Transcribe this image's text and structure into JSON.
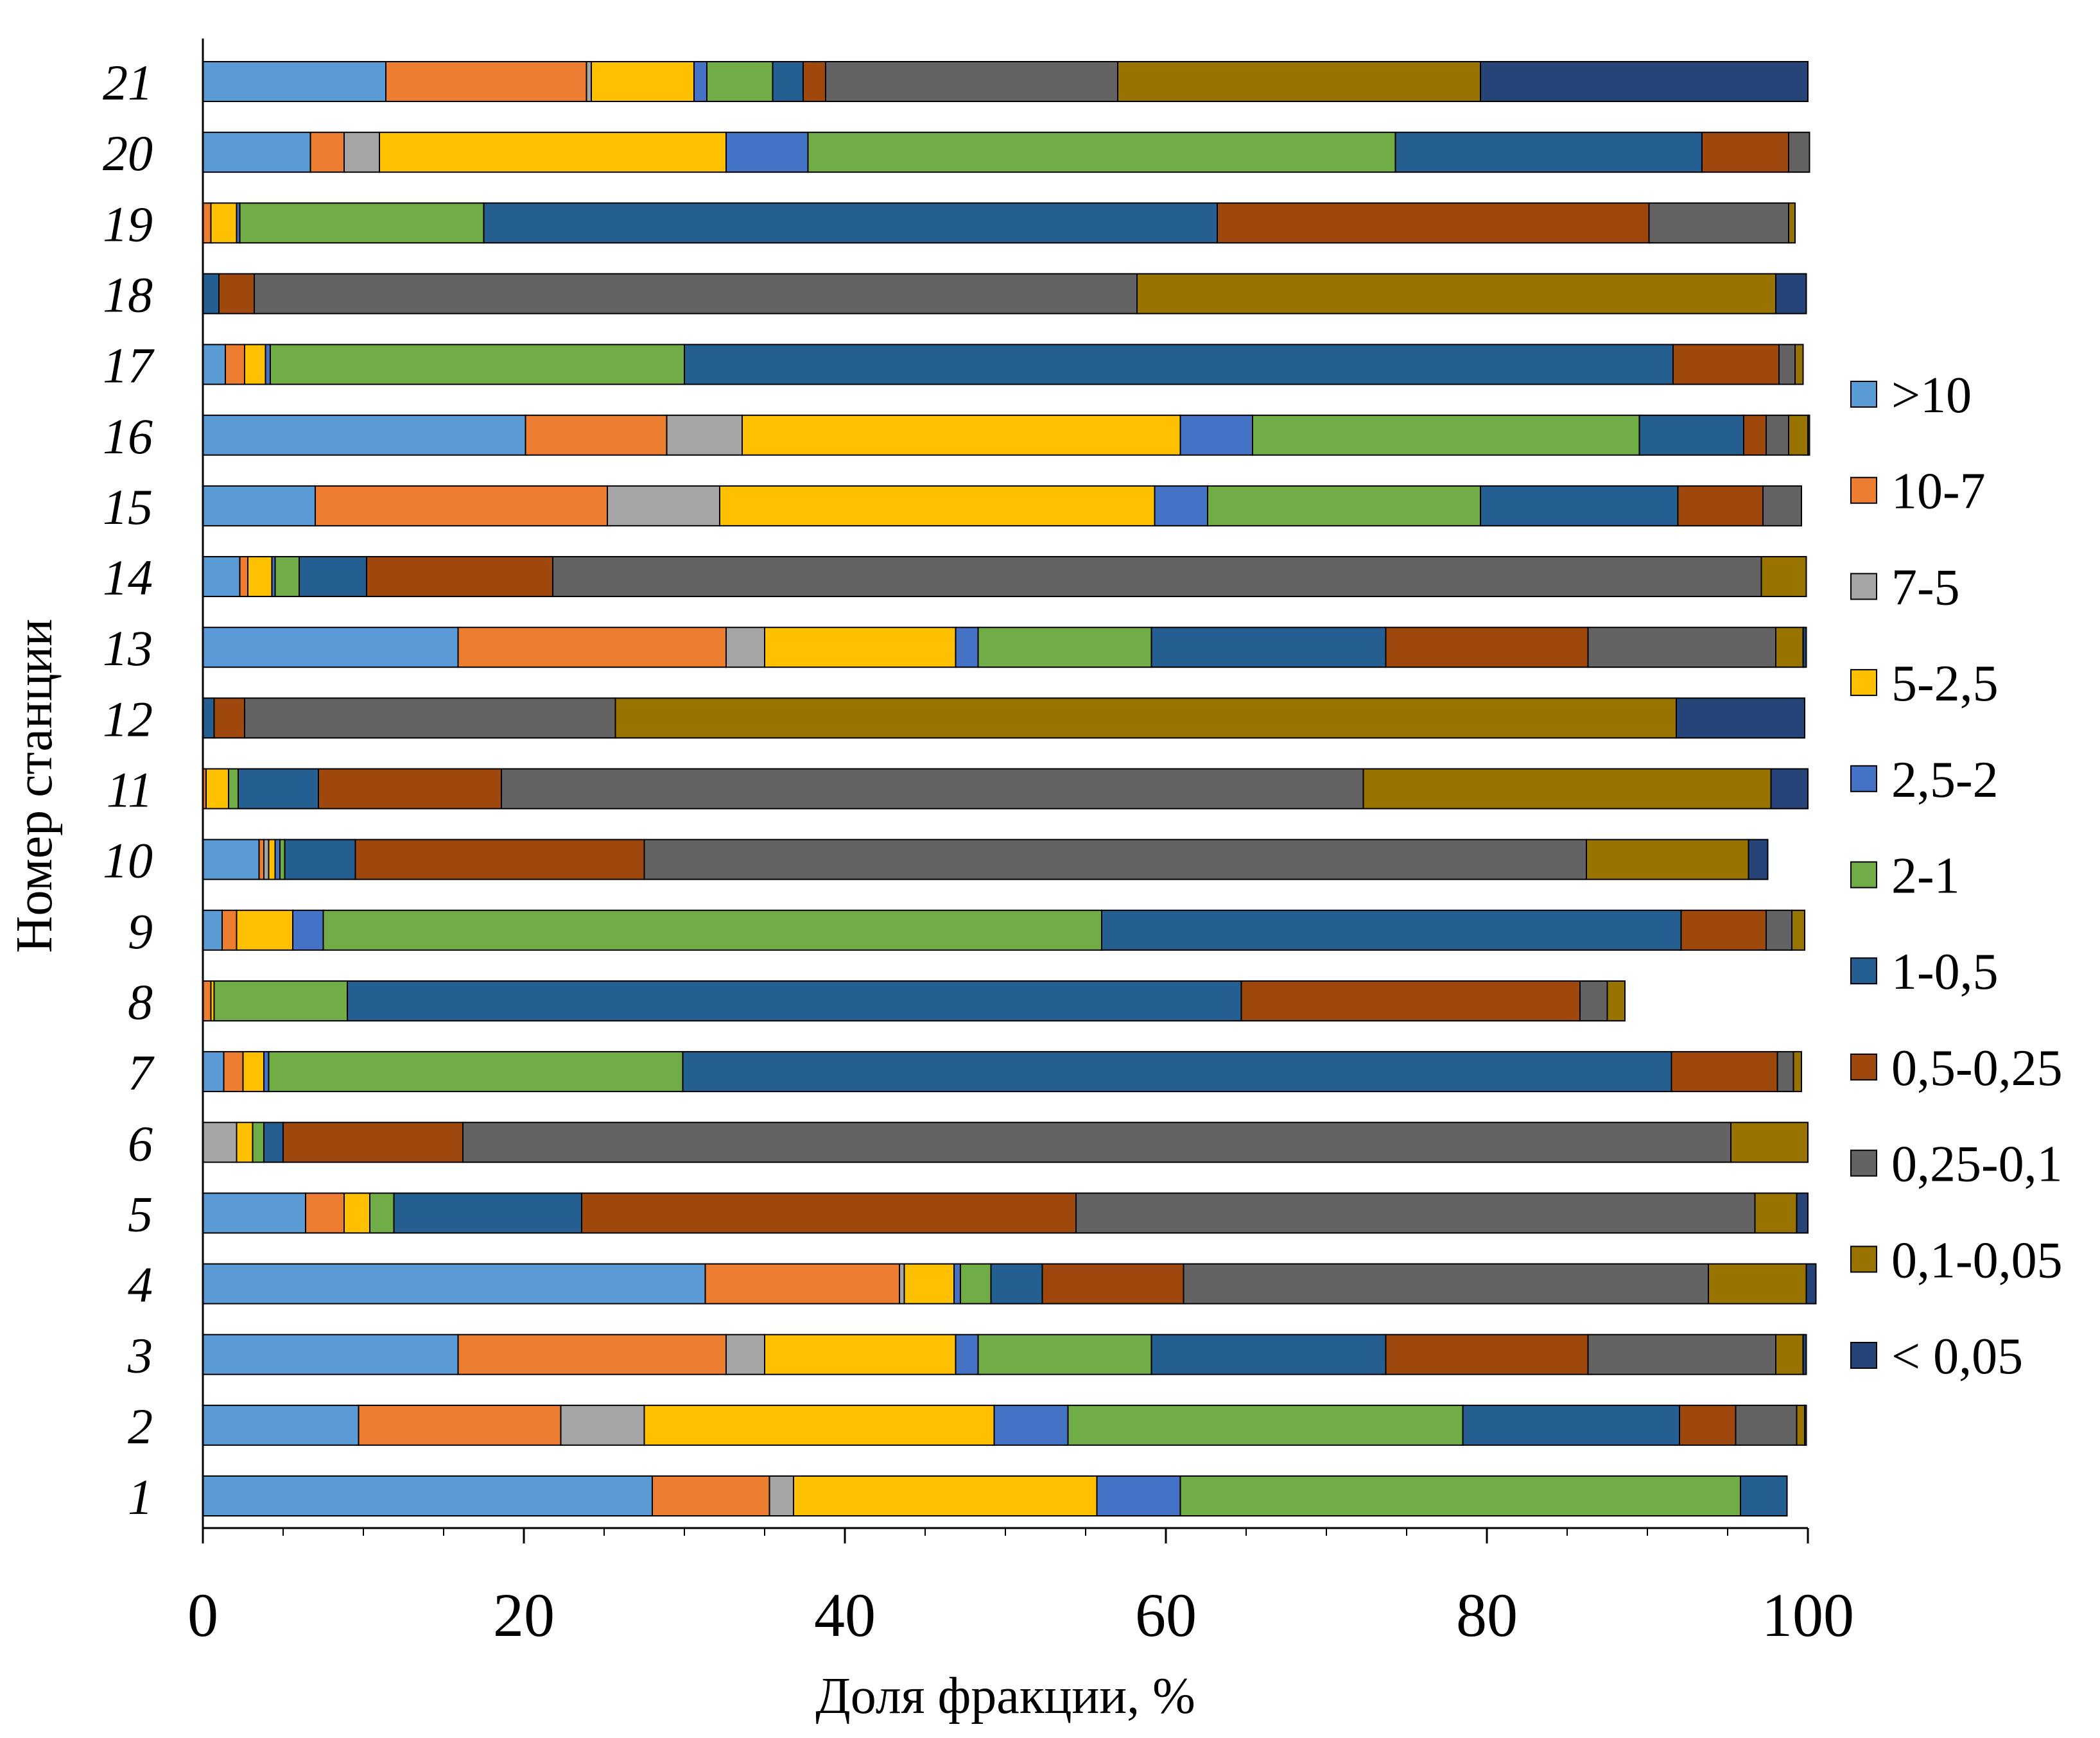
{
  "chart_data": {
    "type": "bar",
    "orientation": "horizontal",
    "stacked": "percent",
    "xlabel": "Доля фракции, %",
    "ylabel": "Номер станции",
    "xlim": [
      0,
      100
    ],
    "xticks": [
      "0",
      "20",
      "40",
      "60",
      "80",
      "100"
    ],
    "grid": false,
    "legend_position": "right",
    "categories": [
      "1",
      "2",
      "3",
      "4",
      "5",
      "6",
      "7",
      "8",
      "9",
      "10",
      "11",
      "12",
      "13",
      "14",
      "15",
      "16",
      "17",
      "18",
      "19",
      "20",
      "21"
    ],
    "series": [
      {
        "name": ">10",
        "color": "#5B9BD5",
        "values": [
          28.0,
          9.7,
          15.9,
          31.3,
          6.4,
          0,
          1.3,
          0,
          1.2,
          3.5,
          0,
          0,
          15.9,
          2.3,
          7.0,
          20.1,
          1.4,
          0,
          0,
          6.7,
          11.4
        ]
      },
      {
        "name": "10-7",
        "color": "#ED7D31",
        "values": [
          7.3,
          12.6,
          16.7,
          12.1,
          2.4,
          0,
          1.2,
          0.5,
          0.9,
          0.3,
          0.2,
          0,
          16.7,
          0.5,
          18.2,
          8.8,
          1.2,
          0,
          0.5,
          2.1,
          12.5
        ]
      },
      {
        "name": "7-5",
        "color": "#A5A5A5",
        "values": [
          1.5,
          5.2,
          2.4,
          0.3,
          0,
          2.1,
          0,
          0,
          0,
          0.3,
          0,
          0,
          2.4,
          0,
          7.0,
          4.7,
          0,
          0,
          0,
          2.2,
          0.3
        ]
      },
      {
        "name": "5-2,5",
        "color": "#FFC000",
        "values": [
          18.9,
          21.8,
          11.9,
          3.1,
          1.6,
          1.0,
          1.3,
          0.2,
          3.5,
          0.4,
          1.4,
          0,
          11.9,
          1.5,
          27.1,
          27.3,
          1.3,
          0,
          1.6,
          21.6,
          6.4
        ]
      },
      {
        "name": "2,5-2",
        "color": "#4472C4",
        "values": [
          5.2,
          4.6,
          1.4,
          0.4,
          0,
          0,
          0.3,
          0,
          1.9,
          0.3,
          0,
          0,
          1.4,
          0.2,
          3.3,
          4.5,
          0.3,
          0,
          0.2,
          5.1,
          0.8
        ]
      },
      {
        "name": "2-1",
        "color": "#70AD47",
        "values": [
          34.9,
          24.6,
          10.8,
          1.9,
          1.5,
          0.7,
          25.8,
          8.3,
          48.5,
          0.3,
          0.6,
          0,
          10.8,
          1.5,
          17.0,
          24.1,
          25.8,
          0,
          15.2,
          36.6,
          4.1
        ]
      },
      {
        "name": "1-0,5",
        "color": "#255E91",
        "values": [
          2.9,
          13.5,
          14.6,
          3.2,
          11.7,
          1.2,
          61.6,
          55.7,
          36.1,
          4.4,
          5.0,
          0.7,
          14.6,
          4.2,
          12.3,
          6.5,
          61.6,
          1.0,
          45.7,
          19.1,
          1.9
        ]
      },
      {
        "name": "0,5-0,25",
        "color": "#9E480E",
        "values": [
          0,
          3.5,
          12.6,
          8.8,
          30.8,
          11.2,
          6.6,
          21.1,
          5.3,
          18.0,
          11.4,
          1.9,
          12.6,
          11.6,
          5.3,
          1.4,
          6.6,
          2.2,
          26.9,
          5.4,
          1.4
        ]
      },
      {
        "name": "0,25-0,1",
        "color": "#636363",
        "values": [
          0,
          3.8,
          11.7,
          32.7,
          42.3,
          79.0,
          1.0,
          1.7,
          1.6,
          58.7,
          53.7,
          23.1,
          11.7,
          75.3,
          2.4,
          1.4,
          1.0,
          55.0,
          8.7,
          1.3,
          18.2
        ]
      },
      {
        "name": "0,1-0,05",
        "color": "#997300",
        "values": [
          0,
          0.5,
          1.7,
          6.1,
          2.6,
          4.8,
          0.5,
          1.1,
          0.8,
          10.1,
          25.4,
          66.1,
          1.7,
          2.8,
          0,
          1.2,
          0.5,
          39.8,
          0.4,
          0,
          22.6
        ]
      },
      {
        "name": "< 0,05",
        "color": "#264478",
        "values": [
          0,
          0.1,
          0.2,
          0.6,
          0.7,
          0,
          0,
          0,
          0,
          1.2,
          2.3,
          8.0,
          0.2,
          0,
          0,
          0.1,
          0,
          1.9,
          0,
          0,
          20.4
        ]
      }
    ]
  }
}
